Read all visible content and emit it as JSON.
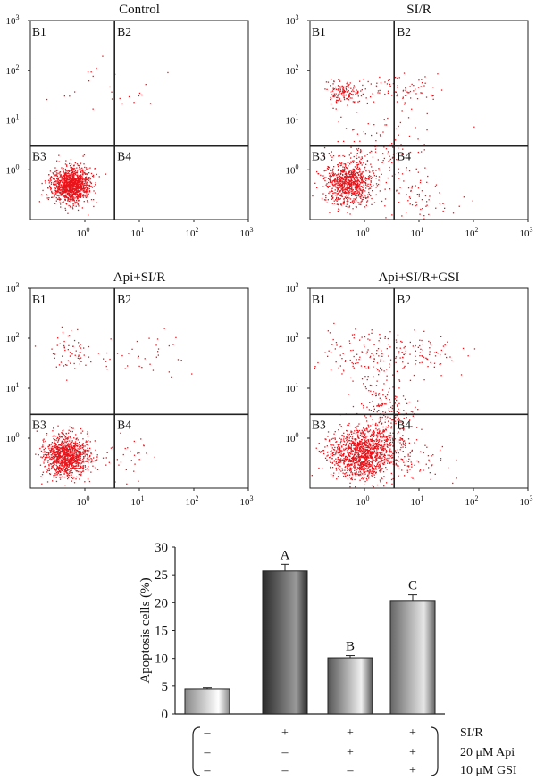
{
  "chart_data": [
    {
      "type": "scatter",
      "title": "Control",
      "quadrant_labels": [
        "B1",
        "B2",
        "B3",
        "B4"
      ],
      "axis_scale": "log",
      "xlim_exp": [
        -1,
        3
      ],
      "ylim_exp": [
        -1,
        3
      ],
      "x_ticks": [
        {
          "base": "10",
          "exp": "0"
        },
        {
          "base": "10",
          "exp": "1"
        },
        {
          "base": "10",
          "exp": "2"
        },
        {
          "base": "10",
          "exp": "3"
        }
      ],
      "y_ticks": [
        {
          "base": "10",
          "exp": "0"
        },
        {
          "base": "10",
          "exp": "1"
        },
        {
          "base": "10",
          "exp": "2"
        },
        {
          "base": "10",
          "exp": "3"
        }
      ],
      "gate_x": 3.5,
      "gate_y": 3,
      "clusters": [
        {
          "cx": 0.55,
          "cy": 0.5,
          "sx": 0.18,
          "sy": 0.18,
          "n": 1200
        },
        {
          "cx": 2,
          "cy": 30,
          "sx": 0.5,
          "sy": 0.3,
          "n": 25
        }
      ],
      "marker_color": "#e8141b"
    },
    {
      "type": "scatter",
      "title": "SI/R",
      "quadrant_labels": [
        "B1",
        "B2",
        "B3",
        "B4"
      ],
      "axis_scale": "log",
      "xlim_exp": [
        -1,
        3
      ],
      "ylim_exp": [
        -1,
        3
      ],
      "x_ticks": [
        {
          "base": "10",
          "exp": "0"
        },
        {
          "base": "10",
          "exp": "1"
        },
        {
          "base": "10",
          "exp": "2"
        },
        {
          "base": "10",
          "exp": "3"
        }
      ],
      "y_ticks": [
        {
          "base": "10",
          "exp": "0"
        },
        {
          "base": "10",
          "exp": "1"
        },
        {
          "base": "10",
          "exp": "2"
        },
        {
          "base": "10",
          "exp": "3"
        }
      ],
      "gate_x": 3.5,
      "gate_y": 3,
      "clusters": [
        {
          "cx": 0.5,
          "cy": 0.55,
          "sx": 0.22,
          "sy": 0.22,
          "n": 800
        },
        {
          "cx": 0.4,
          "cy": 35,
          "sx": 0.15,
          "sy": 0.12,
          "n": 150
        },
        {
          "cx": 5,
          "cy": 40,
          "sx": 0.4,
          "sy": 0.15,
          "n": 90
        },
        {
          "cx": 2,
          "cy": 2,
          "sx": 0.45,
          "sy": 0.45,
          "n": 150
        },
        {
          "cx": 10,
          "cy": 0.3,
          "sx": 0.35,
          "sy": 0.25,
          "n": 60
        }
      ],
      "marker_color": "#e8141b"
    },
    {
      "type": "scatter",
      "title": "Api+SI/R",
      "quadrant_labels": [
        "B1",
        "B2",
        "B3",
        "B4"
      ],
      "axis_scale": "log",
      "xlim_exp": [
        -1,
        3
      ],
      "ylim_exp": [
        -1,
        3
      ],
      "x_ticks": [
        {
          "base": "10",
          "exp": "0"
        },
        {
          "base": "10",
          "exp": "1"
        },
        {
          "base": "10",
          "exp": "2"
        },
        {
          "base": "10",
          "exp": "3"
        }
      ],
      "y_ticks": [
        {
          "base": "10",
          "exp": "0"
        },
        {
          "base": "10",
          "exp": "1"
        },
        {
          "base": "10",
          "exp": "2"
        },
        {
          "base": "10",
          "exp": "3"
        }
      ],
      "gate_x": 3.5,
      "gate_y": 3,
      "clusters": [
        {
          "cx": 0.45,
          "cy": 0.45,
          "sx": 0.2,
          "sy": 0.2,
          "n": 1100
        },
        {
          "cx": 0.5,
          "cy": 50,
          "sx": 0.2,
          "sy": 0.2,
          "n": 60
        },
        {
          "cx": 10,
          "cy": 50,
          "sx": 0.4,
          "sy": 0.2,
          "n": 40
        },
        {
          "cx": 6,
          "cy": 0.4,
          "sx": 0.35,
          "sy": 0.25,
          "n": 40
        }
      ],
      "marker_color": "#e8141b"
    },
    {
      "type": "scatter",
      "title": "Api+SI/R+GSI",
      "quadrant_labels": [
        "B1",
        "B2",
        "B3",
        "B4"
      ],
      "axis_scale": "log",
      "xlim_exp": [
        -1,
        3
      ],
      "ylim_exp": [
        -1,
        3
      ],
      "x_ticks": [
        {
          "base": "10",
          "exp": "0"
        },
        {
          "base": "10",
          "exp": "1"
        },
        {
          "base": "10",
          "exp": "2"
        },
        {
          "base": "10",
          "exp": "3"
        }
      ],
      "y_ticks": [
        {
          "base": "10",
          "exp": "0"
        },
        {
          "base": "10",
          "exp": "1"
        },
        {
          "base": "10",
          "exp": "2"
        },
        {
          "base": "10",
          "exp": "3"
        }
      ],
      "gate_x": 3.5,
      "gate_y": 3,
      "clusters": [
        {
          "cx": 0.9,
          "cy": 0.5,
          "sx": 0.3,
          "sy": 0.25,
          "n": 1300
        },
        {
          "cx": 2.5,
          "cy": 3,
          "sx": 0.25,
          "sy": 0.45,
          "n": 250
        },
        {
          "cx": 1,
          "cy": 50,
          "sx": 0.4,
          "sy": 0.25,
          "n": 120
        },
        {
          "cx": 10,
          "cy": 50,
          "sx": 0.4,
          "sy": 0.2,
          "n": 80
        },
        {
          "cx": 8,
          "cy": 0.4,
          "sx": 0.3,
          "sy": 0.25,
          "n": 60
        }
      ],
      "marker_color": "#e8141b"
    },
    {
      "type": "bar",
      "ylabel": "Apoptosis cells (%)",
      "ylim": [
        0,
        30
      ],
      "yticks": [
        "0",
        "5",
        "10",
        "15",
        "20",
        "25",
        "30"
      ],
      "values": [
        4.5,
        25.7,
        10.1,
        20.4
      ],
      "errors": [
        0.2,
        1.2,
        0.4,
        1.0
      ],
      "significance_letters": [
        "",
        "A",
        "B",
        "C"
      ],
      "bar_gradients": [
        [
          "#888888",
          "#ffffff"
        ],
        [
          "#2a2a2a",
          "#9a9a9a"
        ],
        [
          "#555555",
          "#f0f0f0"
        ],
        [
          "#666666",
          "#e6e6e6"
        ]
      ],
      "treatment_rows": [
        {
          "label": "SI/R",
          "marks": [
            "–",
            "+",
            "+",
            "+"
          ]
        },
        {
          "label": "20 μM Api",
          "marks": [
            "–",
            "–",
            "+",
            "+"
          ]
        },
        {
          "label": "10 μM GSI",
          "marks": [
            "–",
            "–",
            "–",
            "+"
          ]
        }
      ]
    }
  ]
}
